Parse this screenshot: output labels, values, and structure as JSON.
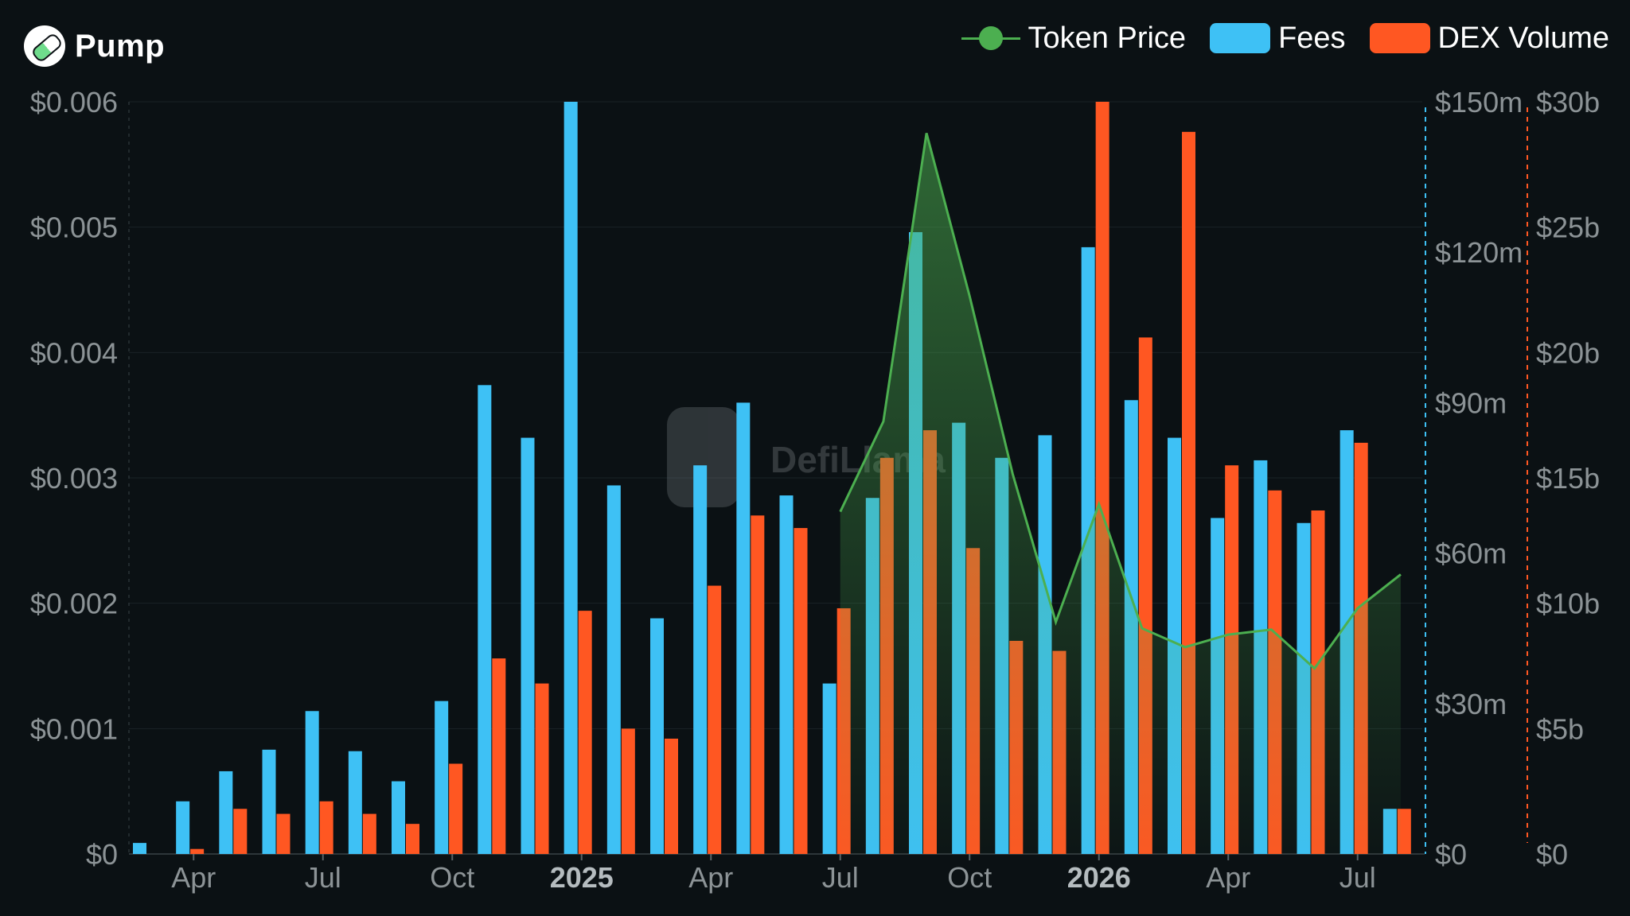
{
  "header": {
    "title": "Pump",
    "logo_icon": "pill-icon"
  },
  "watermark": "DefiLlama",
  "legend": [
    {
      "label": "Token Price",
      "color": "#4caf50",
      "kind": "line"
    },
    {
      "label": "Fees",
      "color": "#3ec1f5",
      "kind": "box"
    },
    {
      "label": "DEX Volume",
      "color": "#ff5722",
      "kind": "box"
    }
  ],
  "chart_data": {
    "type": "bar",
    "categories": [
      "Mar 2024",
      "Apr 2024",
      "May 2024",
      "Jun 2024",
      "Jul 2024",
      "Aug 2024",
      "Sep 2024",
      "Oct 2024",
      "Nov 2024",
      "Dec 2024",
      "Jan 2025",
      "Feb 2025",
      "Mar 2025",
      "Apr 2025",
      "May 2025",
      "Jun 2025",
      "Jul 2025",
      "Aug 2025",
      "Sep 2025",
      "Oct 2025",
      "Nov 2025",
      "Dec 2025",
      "Jan 2026",
      "Feb 2026",
      "Mar 2026",
      "Apr 2026",
      "May 2026",
      "Jun 2026",
      "Jul 2026",
      "Aug 2026"
    ],
    "x_tick_labels": [
      {
        "index": 1,
        "label": "Apr",
        "bold": false
      },
      {
        "index": 4,
        "label": "Jul",
        "bold": false
      },
      {
        "index": 7,
        "label": "Oct",
        "bold": false
      },
      {
        "index": 10,
        "label": "2025",
        "bold": true
      },
      {
        "index": 13,
        "label": "Apr",
        "bold": false
      },
      {
        "index": 16,
        "label": "Jul",
        "bold": false
      },
      {
        "index": 19,
        "label": "Oct",
        "bold": false
      },
      {
        "index": 22,
        "label": "2026",
        "bold": true
      },
      {
        "index": 25,
        "label": "Apr",
        "bold": false
      },
      {
        "index": 28,
        "label": "Jul",
        "bold": false
      }
    ],
    "series": [
      {
        "name": "Fees",
        "kind": "bar",
        "axis": "fees",
        "color": "#3ec1f5",
        "unit": "USD millions",
        "values": [
          2.2,
          10.5,
          16.5,
          20.8,
          28.5,
          20.5,
          14.5,
          30.5,
          93.5,
          83,
          150,
          73.5,
          47,
          77.5,
          90,
          71.5,
          34,
          71,
          124,
          86,
          79,
          83.5,
          121,
          90.5,
          83,
          67,
          78.5,
          66,
          84.5,
          9
        ]
      },
      {
        "name": "DEX Volume",
        "kind": "bar",
        "axis": "volume",
        "color": "#ff5722",
        "unit": "USD billions",
        "values": [
          null,
          0.2,
          1.8,
          1.6,
          2.1,
          1.6,
          1.2,
          3.6,
          7.8,
          6.8,
          9.7,
          5,
          4.6,
          10.7,
          13.5,
          13,
          9.8,
          15.8,
          16.9,
          12.2,
          8.5,
          8.1,
          30,
          20.6,
          28.8,
          15.5,
          14.5,
          13.7,
          16.4,
          1.8
        ]
      },
      {
        "name": "Token Price",
        "kind": "line",
        "axis": "price",
        "color": "#4caf50",
        "unit": "USD",
        "values": [
          null,
          null,
          null,
          null,
          null,
          null,
          null,
          null,
          null,
          null,
          null,
          null,
          null,
          null,
          null,
          null,
          0.00273,
          0.00345,
          0.00575,
          0.00445,
          0.00303,
          0.00185,
          0.00279,
          0.0018,
          0.00165,
          0.00175,
          0.00179,
          0.00148,
          0.00196,
          0.00223
        ]
      }
    ],
    "axes": {
      "price": {
        "position": "left",
        "ylim": [
          0,
          0.006
        ],
        "ticks": [
          "$0",
          "$0.001",
          "$0.002",
          "$0.003",
          "$0.004",
          "$0.005",
          "$0.006"
        ]
      },
      "fees": {
        "position": "right",
        "ylim": [
          0,
          150
        ],
        "ticks": [
          "$0",
          "$30m",
          "$60m",
          "$90m",
          "$120m",
          "$150m"
        ]
      },
      "volume": {
        "position": "right",
        "ylim": [
          0,
          30
        ],
        "ticks": [
          "$0",
          "$5b",
          "$10b",
          "$15b",
          "$20b",
          "$25b",
          "$30b"
        ]
      }
    },
    "grid": true,
    "legend_position": "top-right"
  }
}
